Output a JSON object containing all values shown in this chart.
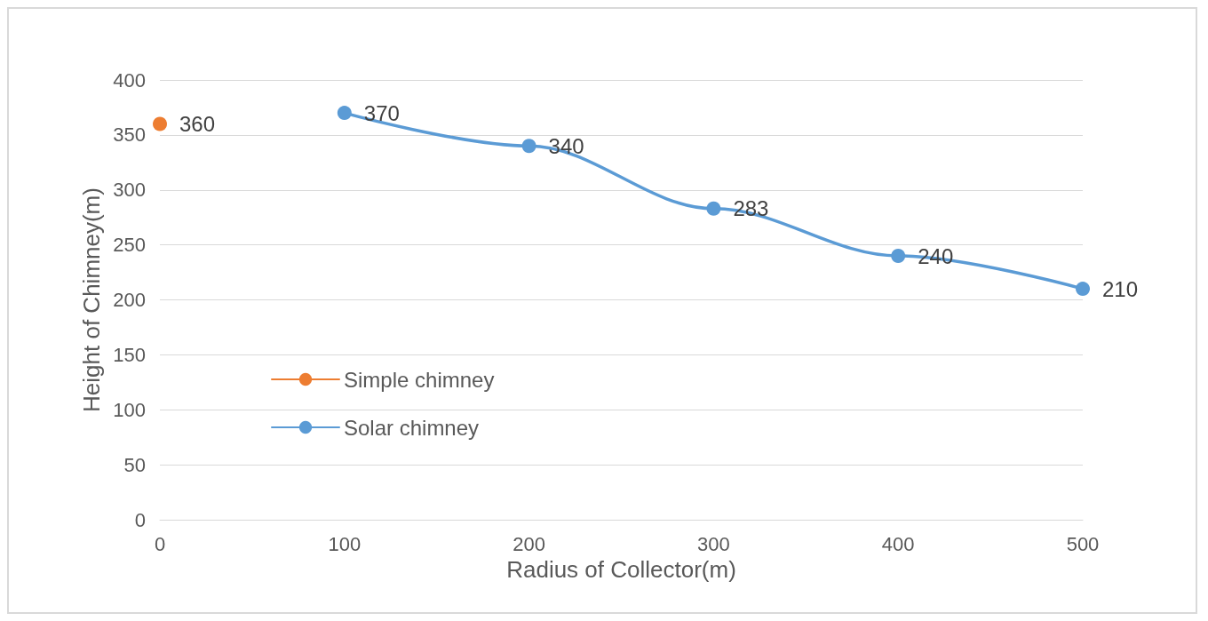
{
  "chart_data": {
    "type": "line",
    "xlabel": "Radius of Collector(m)",
    "ylabel": "Height of Chimney(m)",
    "xlim": [
      0,
      500
    ],
    "xticks": [
      0,
      100,
      200,
      300,
      400,
      500
    ],
    "ylim": [
      0,
      400
    ],
    "yticks": [
      0,
      50,
      100,
      150,
      200,
      250,
      300,
      350,
      400
    ],
    "grid": "y",
    "legend": "left",
    "marker": "circle",
    "data_labels": true,
    "series": [
      {
        "name": "Simple chimney",
        "color": "#ed7d31",
        "x": [
          0
        ],
        "values": [
          360
        ]
      },
      {
        "name": "Solar chimney",
        "color": "#5b9bd5",
        "x": [
          100,
          200,
          300,
          400,
          500
        ],
        "values": [
          370,
          340,
          283,
          240,
          210
        ]
      }
    ]
  }
}
